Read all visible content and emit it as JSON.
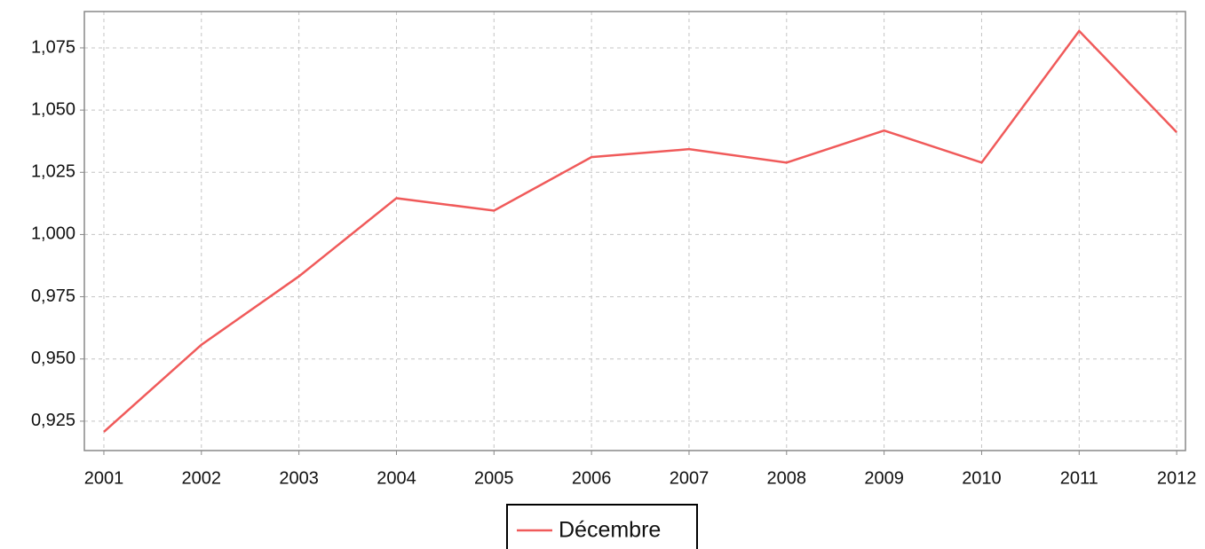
{
  "chart_data": {
    "type": "line",
    "x": [
      2001,
      2002,
      2003,
      2004,
      2005,
      2006,
      2007,
      2008,
      2009,
      2010,
      2011,
      2012
    ],
    "series": [
      {
        "name": "Décembre",
        "color": "#f05a5a",
        "values": [
          0.9207,
          0.9557,
          0.9832,
          1.0146,
          1.0096,
          1.0311,
          1.0343,
          1.0289,
          1.0418,
          1.0289,
          1.0818,
          1.0411
        ]
      }
    ],
    "xlim": [
      2000.8,
      2012.09
    ],
    "xticks": [
      2001,
      2002,
      2003,
      2004,
      2005,
      2006,
      2007,
      2008,
      2009,
      2010,
      2011,
      2012
    ],
    "ylim": [
      0.9132,
      1.0896
    ],
    "yticks": [
      {
        "value": 0.925,
        "label": "0,925"
      },
      {
        "value": 0.95,
        "label": "0,950"
      },
      {
        "value": 0.975,
        "label": "0,975"
      },
      {
        "value": 1.0,
        "label": "1,000"
      },
      {
        "value": 1.025,
        "label": "1,025"
      },
      {
        "value": 1.05,
        "label": "1,050"
      },
      {
        "value": 1.075,
        "label": "1,075"
      }
    ],
    "grid": true,
    "legend": "bottom"
  }
}
